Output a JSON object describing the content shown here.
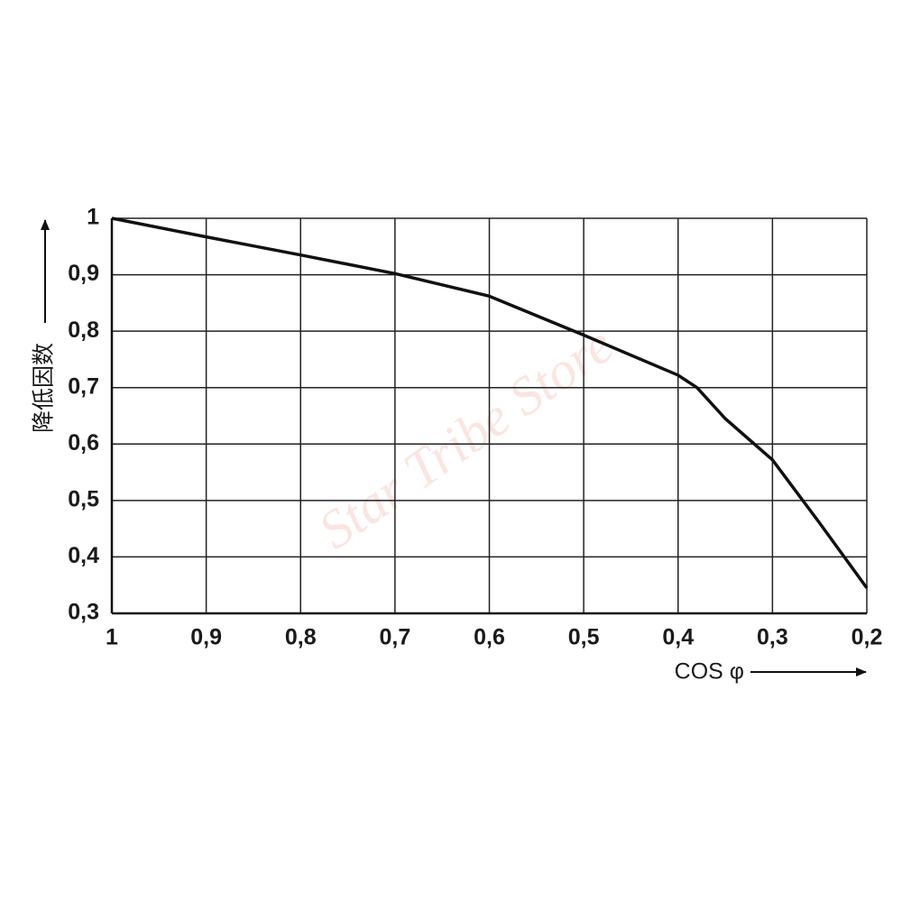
{
  "chart_data": {
    "type": "line",
    "watermark": "Star Tribe Store",
    "y_label": "降低因数",
    "x_label": "COS φ",
    "x": [
      1,
      0.9,
      0.8,
      0.7,
      0.65,
      0.6,
      0.5,
      0.4,
      0.38,
      0.35,
      0.3,
      0.25,
      0.2
    ],
    "series": [
      {
        "color": "#111111",
        "values": [
          1.0,
          0.967,
          0.935,
          0.902,
          0.882,
          0.862,
          0.793,
          0.722,
          0.7,
          0.645,
          0.572,
          0.46,
          0.345
        ]
      }
    ],
    "xlim": [
      1,
      0.2
    ],
    "ylim": [
      0.3,
      1
    ],
    "xticks": [
      1,
      {
        "value": 0.9,
        "label": "0,9"
      },
      {
        "value": 0.8,
        "label": "0,8"
      },
      {
        "value": 0.7,
        "label": "0,7"
      },
      {
        "value": 0.6,
        "label": "0,6"
      },
      {
        "value": 0.5,
        "label": "0,5"
      },
      {
        "value": 0.4,
        "label": "0,4"
      },
      {
        "value": 0.3,
        "label": "0,3"
      },
      {
        "value": 0.2,
        "label": "0,2"
      }
    ],
    "yticks": [
      {
        "value": 0.3,
        "label": "0,3"
      },
      {
        "value": 0.4,
        "label": "0,4"
      },
      {
        "value": 0.5,
        "label": "0,5"
      },
      {
        "value": 0.6,
        "label": "0,6"
      },
      {
        "value": 0.7,
        "label": "0,7"
      },
      {
        "value": 0.8,
        "label": "0,8"
      },
      {
        "value": 0.9,
        "label": "0,9"
      },
      1
    ],
    "grid": true
  }
}
